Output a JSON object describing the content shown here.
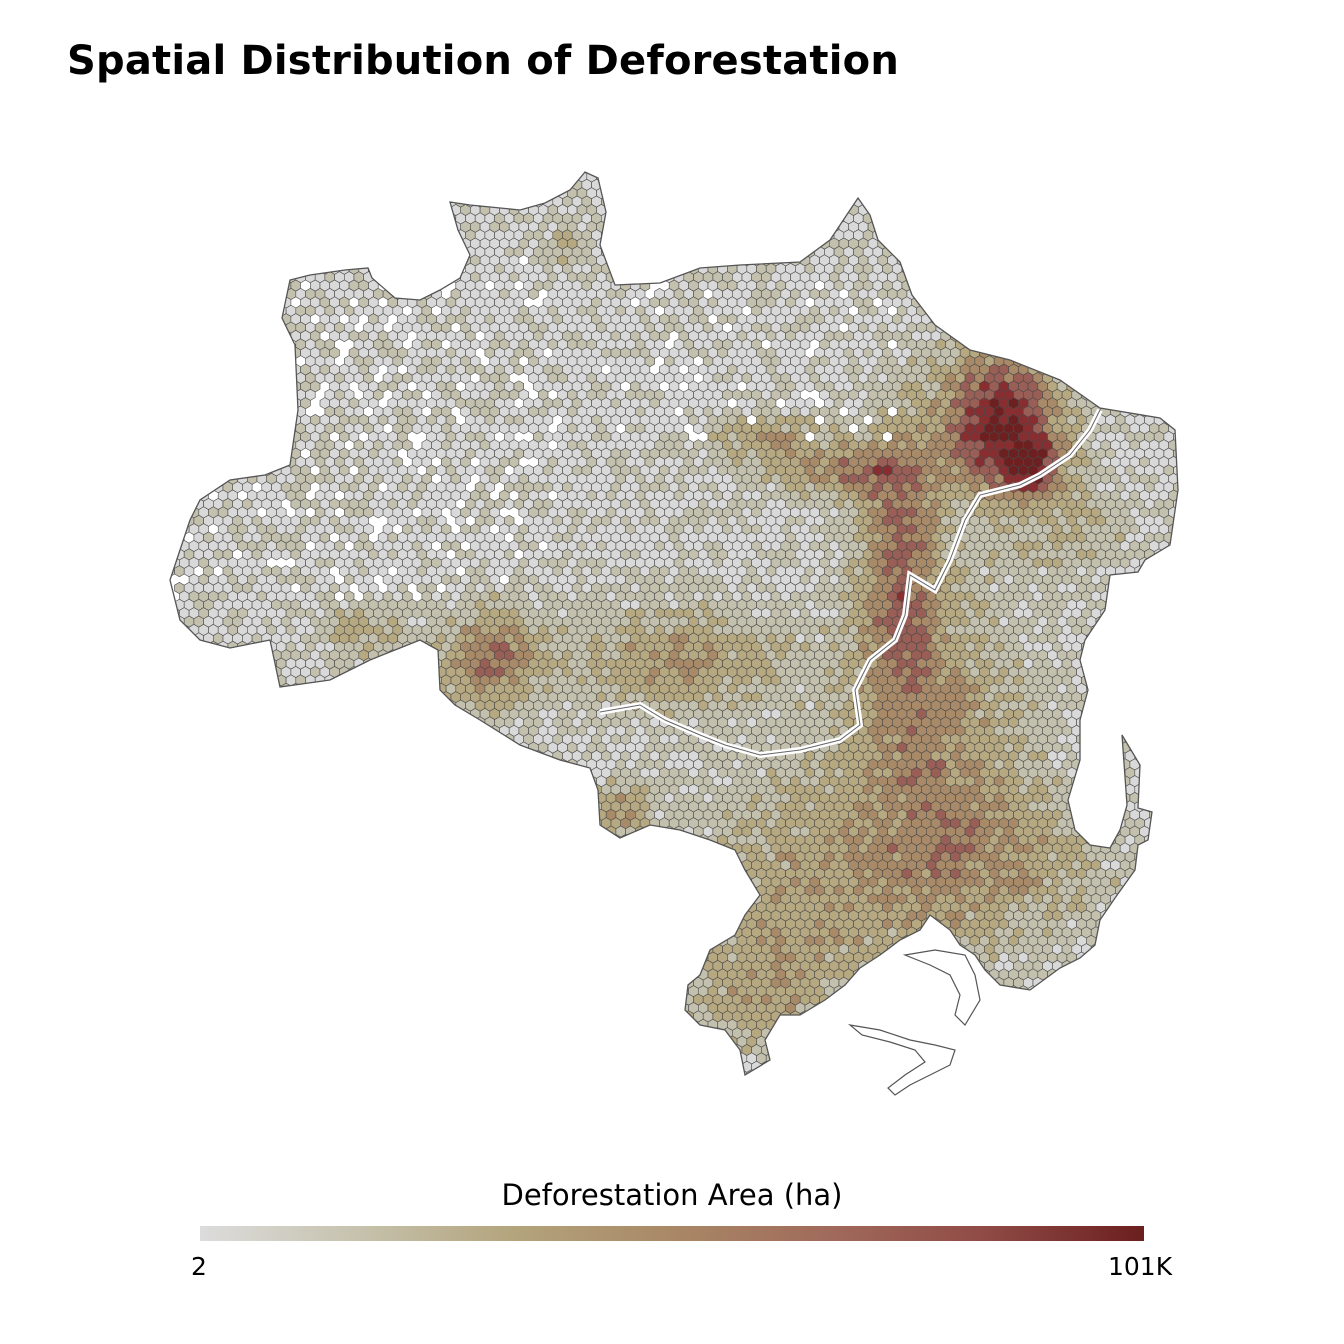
{
  "title": "Spatial Distribution of Deforestation",
  "map": {
    "region_outline_color": "#555555",
    "hex_stroke_color": "#4a4a4a",
    "palette": [
      "#d9d9d9",
      "#c3c0ad",
      "#b6a880",
      "#a98a68",
      "#995e55",
      "#882e30",
      "#6e1f1f"
    ]
  },
  "legend": {
    "title": "Deforestation Area (ha)",
    "min_label": "2",
    "max_label": "101K",
    "gradient": [
      "#dcdcdc",
      "#c6c2ad",
      "#b3a47c",
      "#a98866",
      "#a06a5b",
      "#8f4a45",
      "#6b1f1f"
    ]
  }
}
